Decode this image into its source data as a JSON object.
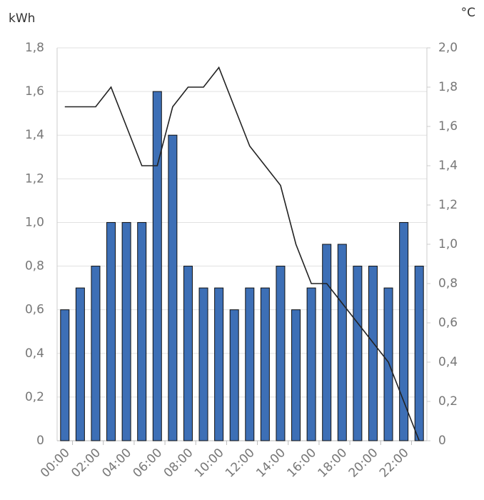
{
  "chart_data": {
    "type": "bar",
    "y_label": "kWh",
    "y2_label": "°C",
    "categories": [
      "00:00",
      null,
      "02:00",
      null,
      "04:00",
      null,
      "06:00",
      null,
      "08:00",
      null,
      "10:00",
      null,
      "12:00",
      null,
      "14:00",
      null,
      "16:00",
      null,
      "18:00",
      null,
      "20:00",
      null,
      "22:00",
      null
    ],
    "series": [
      {
        "type": "bar",
        "axis": "y",
        "color": "#3d6fb6",
        "values": [
          0.6,
          0.7,
          0.8,
          1.0,
          1.0,
          1.0,
          1.6,
          1.4,
          0.8,
          0.7,
          0.7,
          0.6,
          0.7,
          0.7,
          0.8,
          0.6,
          0.7,
          0.9,
          0.9,
          0.8,
          0.8,
          0.7,
          1.0,
          0.8
        ]
      },
      {
        "type": "line",
        "axis": "y2",
        "color": "#222222",
        "values": [
          1.7,
          1.7,
          1.7,
          1.8,
          1.6,
          1.4,
          1.4,
          1.7,
          1.8,
          1.8,
          1.9,
          1.7,
          1.5,
          1.4,
          1.3,
          1.0,
          0.8,
          0.8,
          0.7,
          0.6,
          0.5,
          0.4,
          0.2,
          0.0
        ]
      }
    ],
    "ylim": [
      0,
      1.8
    ],
    "yticks": [
      0,
      {
        "value": 0.2,
        "label": "0,2"
      },
      {
        "value": 0.4,
        "label": "0,4"
      },
      {
        "value": 0.6,
        "label": "0,6"
      },
      {
        "value": 0.8,
        "label": "0,8"
      },
      {
        "value": 1.0,
        "label": "1,0"
      },
      {
        "value": 1.2,
        "label": "1,2"
      },
      {
        "value": 1.4,
        "label": "1,4"
      },
      {
        "value": 1.6,
        "label": "1,6"
      },
      {
        "value": 1.8,
        "label": "1,8"
      }
    ],
    "y2lim": [
      0,
      2.0
    ],
    "y2ticks": [
      0,
      {
        "value": 0.2,
        "label": "0,2"
      },
      {
        "value": 0.4,
        "label": "0,4"
      },
      {
        "value": 0.6,
        "label": "0,6"
      },
      {
        "value": 0.8,
        "label": "0,8"
      },
      {
        "value": 1.0,
        "label": "1,0"
      },
      {
        "value": 1.2,
        "label": "1,2"
      },
      {
        "value": 1.4,
        "label": "1,4"
      },
      {
        "value": 1.6,
        "label": "1,6"
      },
      {
        "value": 1.8,
        "label": "1,8"
      },
      {
        "value": 2.0,
        "label": "2,0"
      }
    ],
    "grid": true
  }
}
